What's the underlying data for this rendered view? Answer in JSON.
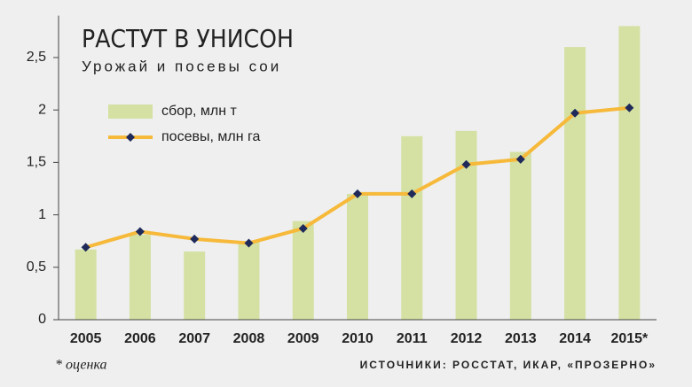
{
  "chart_data": {
    "type": "bar_line",
    "title": "РАСТУТ В УНИСОН",
    "subtitle": "Урожай и посевы сои",
    "categories": [
      "2005",
      "2006",
      "2007",
      "2008",
      "2009",
      "2010",
      "2011",
      "2012",
      "2013",
      "2014",
      "2015*"
    ],
    "series": [
      {
        "name": "сбор, млн т",
        "type": "bar",
        "color": "#d4e1a3",
        "values": [
          0.67,
          0.81,
          0.65,
          0.74,
          0.94,
          1.2,
          1.75,
          1.8,
          1.6,
          2.6,
          2.8
        ]
      },
      {
        "name": "посевы, млн га",
        "type": "line",
        "color": "#f6b93a",
        "marker_color": "#1f2a5a",
        "values": [
          0.69,
          0.84,
          0.77,
          0.73,
          0.87,
          1.2,
          1.2,
          1.48,
          1.53,
          1.97,
          2.02
        ]
      }
    ],
    "ylim": [
      0,
      2.9
    ],
    "yticks": [
      0,
      {
        "value": 0.5,
        "label": "0,5"
      },
      1,
      {
        "value": 1.5,
        "label": "1,5"
      },
      2,
      {
        "value": 2.5,
        "label": "2,5"
      }
    ],
    "grid": false,
    "legend": "upper-left",
    "footnote": "* оценка",
    "source": "ИСТОЧНИКИ: РОССТАТ, ИКАР, «ПРОЗЕРНО»"
  }
}
